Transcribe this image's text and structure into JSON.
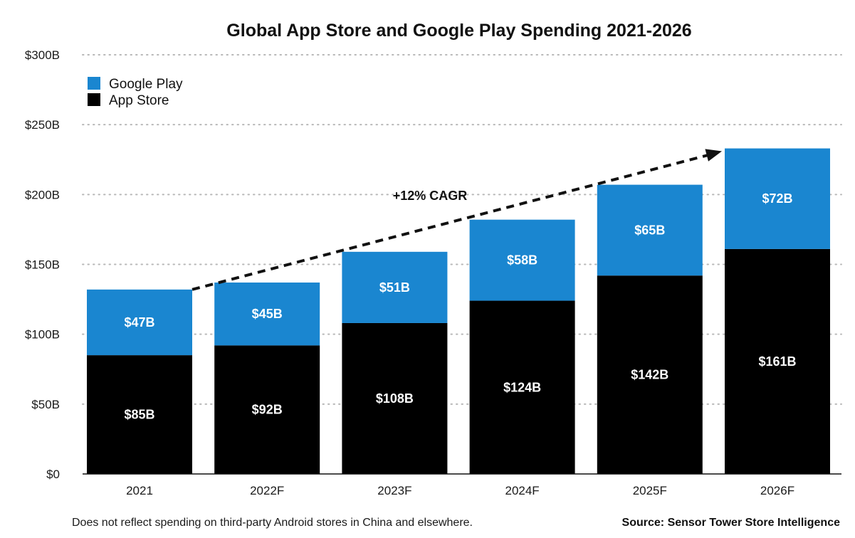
{
  "chart_data": {
    "type": "bar",
    "stacked": true,
    "title": "Global App Store and Google Play Spending 2021-2026",
    "categories": [
      "2021",
      "2022F",
      "2023F",
      "2024F",
      "2025F",
      "2026F"
    ],
    "series": [
      {
        "name": "App Store",
        "color": "#000000",
        "values": [
          85,
          92,
          108,
          124,
          142,
          161
        ],
        "labels": [
          "$85B",
          "$92B",
          "$108B",
          "$124B",
          "$142B",
          "$161B"
        ]
      },
      {
        "name": "Google Play",
        "color": "#1a86d0",
        "values": [
          47,
          45,
          51,
          58,
          65,
          72
        ],
        "labels": [
          "$47B",
          "$45B",
          "$51B",
          "$58B",
          "$65B",
          "$72B"
        ]
      }
    ],
    "ylim": [
      0,
      300
    ],
    "yticks": [
      0,
      50,
      100,
      150,
      200,
      250,
      300
    ],
    "ytick_labels": [
      "$0",
      "$50B",
      "$100B",
      "$150B",
      "$200B",
      "$250B",
      "$300B"
    ],
    "xlabel": "",
    "ylabel": "",
    "grid": true,
    "legend": {
      "position": "top-left",
      "entries": [
        "Google Play",
        "App Store"
      ]
    },
    "annotation": {
      "text": "+12% CAGR",
      "type": "dashed-arrow"
    },
    "footnote": "Does not reflect spending on third-party Android stores in China and elsewhere.",
    "source": "Source: Sensor Tower Store Intelligence"
  }
}
